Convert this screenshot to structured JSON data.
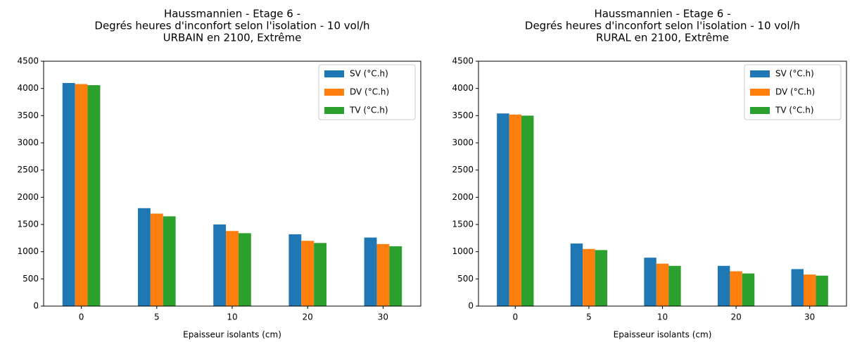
{
  "chart_data": [
    {
      "type": "bar",
      "title": [
        "Haussmannien - Etage 6 -",
        "Degrés heures d'inconfort selon l'isolation - 10 vol/h",
        "URBAIN en 2100, Extrême"
      ],
      "xlabel": "Epaisseur isolants (cm)",
      "categories": [
        "0",
        "5",
        "10",
        "20",
        "30"
      ],
      "series": [
        {
          "name": "SV (°C.h)",
          "color": "#1f77b4",
          "values": [
            4100,
            1800,
            1500,
            1320,
            1260
          ]
        },
        {
          "name": "DV (°C.h)",
          "color": "#ff7f0e",
          "values": [
            4080,
            1700,
            1380,
            1200,
            1140
          ]
        },
        {
          "name": "TV (°C.h)",
          "color": "#2ca02c",
          "values": [
            4060,
            1650,
            1340,
            1160,
            1100
          ]
        }
      ],
      "ylim": [
        0,
        4500
      ],
      "yticks": [
        0,
        500,
        1000,
        1500,
        2000,
        2500,
        3000,
        3500,
        4000,
        4500
      ],
      "legend": "upper right"
    },
    {
      "type": "bar",
      "title": [
        "Haussmannien - Etage 6 -",
        "Degrés heures d'inconfort selon l'isolation - 10 vol/h",
        "RURAL en 2100, Extrême"
      ],
      "xlabel": "Epaisseur isolants (cm)",
      "categories": [
        "0",
        "5",
        "10",
        "20",
        "30"
      ],
      "series": [
        {
          "name": "SV (°C.h)",
          "color": "#1f77b4",
          "values": [
            3540,
            1150,
            890,
            740,
            680
          ]
        },
        {
          "name": "DV (°C.h)",
          "color": "#ff7f0e",
          "values": [
            3520,
            1050,
            780,
            640,
            580
          ]
        },
        {
          "name": "TV (°C.h)",
          "color": "#2ca02c",
          "values": [
            3500,
            1030,
            740,
            600,
            560
          ]
        }
      ],
      "ylim": [
        0,
        4500
      ],
      "yticks": [
        0,
        500,
        1000,
        1500,
        2000,
        2500,
        3000,
        3500,
        4000,
        4500
      ],
      "legend": "upper right"
    }
  ]
}
